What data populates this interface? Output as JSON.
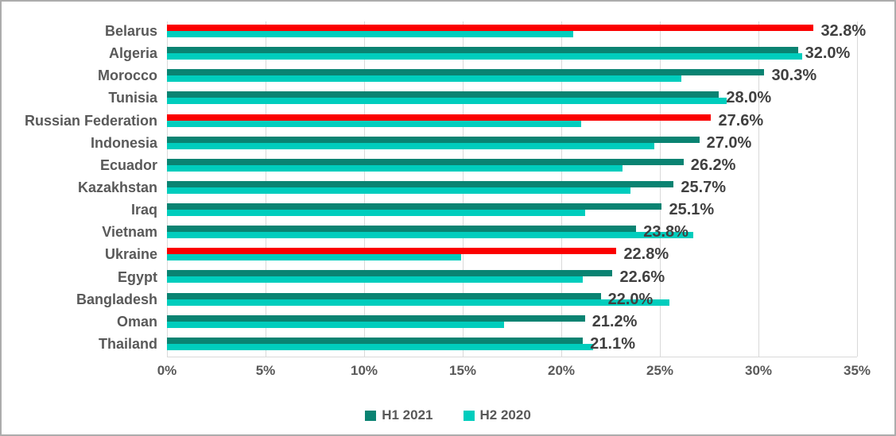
{
  "chart_data": {
    "type": "bar",
    "orientation": "horizontal",
    "title": "",
    "categories": [
      "Belarus",
      "Algeria",
      "Morocco",
      "Tunisia",
      "Russian Federation",
      "Indonesia",
      "Ecuador",
      "Kazakhstan",
      "Iraq",
      "Vietnam",
      "Ukraine",
      "Egypt",
      "Bangladesh",
      "Oman",
      "Thailand"
    ],
    "series": [
      {
        "name": "H1 2021",
        "color": "#0a8372",
        "values": [
          32.8,
          32.0,
          30.3,
          28.0,
          27.6,
          27.0,
          26.2,
          25.7,
          25.1,
          23.8,
          22.8,
          22.6,
          22.0,
          21.2,
          21.1
        ]
      },
      {
        "name": "H2 2020",
        "color": "#00cdbd",
        "values": [
          20.6,
          32.2,
          26.1,
          28.4,
          21.0,
          24.7,
          23.1,
          23.5,
          21.2,
          26.7,
          14.9,
          21.1,
          25.5,
          17.1,
          21.6
        ]
      }
    ],
    "data_labels": [
      "32.8%",
      "32.0%",
      "30.3%",
      "28.0%",
      "27.6%",
      "27.0%",
      "26.2%",
      "25.7%",
      "25.1%",
      "23.8%",
      "22.8%",
      "22.6%",
      "22.0%",
      "21.2%",
      "21.1%"
    ],
    "highlighted_categories": [
      "Belarus",
      "Russian Federation",
      "Ukraine"
    ],
    "highlight_color": "#fb0000",
    "x_ticks": [
      "0%",
      "5%",
      "10%",
      "15%",
      "20%",
      "25%",
      "30%",
      "35%"
    ],
    "xlim": [
      0,
      35
    ],
    "grid": true,
    "legend_position": "bottom",
    "colors": {
      "grid": "#d9d9d9",
      "axis_text": "#595959",
      "category_text": "#595959",
      "data_label_text": "#404040",
      "background": "#ffffff",
      "border": "#acacac"
    }
  }
}
